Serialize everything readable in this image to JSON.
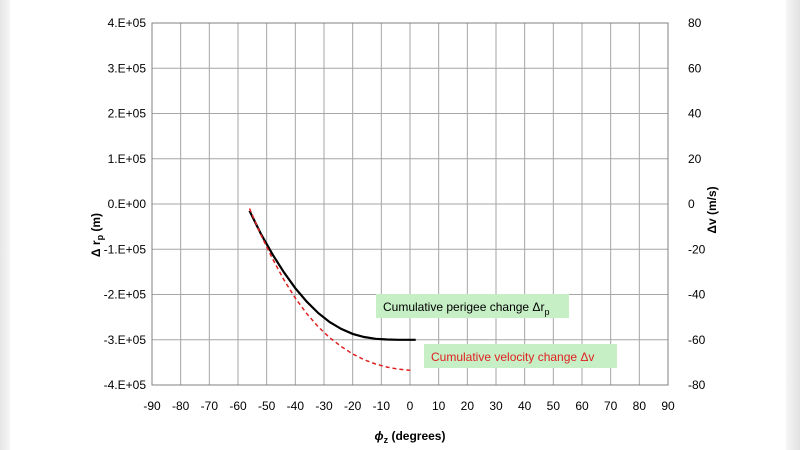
{
  "chart_data": {
    "type": "line",
    "xlabel_symbol": "ϕ",
    "xlabel_sub": "z",
    "xlabel_rest": " (degrees)",
    "ylabel_left_prefix": "Δ r",
    "ylabel_left_sub": "p",
    "ylabel_left_suffix": " (m)",
    "ylabel_right": "Δv (m/s)",
    "x_range": [
      -90,
      90
    ],
    "x_ticks": [
      -90,
      -80,
      -70,
      -60,
      -50,
      -40,
      -30,
      -20,
      -10,
      0,
      10,
      20,
      30,
      40,
      50,
      60,
      70,
      80,
      90
    ],
    "x_tick_labels": [
      "-90",
      "-80",
      "-70",
      "-60",
      "-50",
      "-40",
      "-30",
      "-20",
      "-10",
      "0",
      "10",
      "20",
      "30",
      "40",
      "50",
      "60",
      "70",
      "80",
      "90"
    ],
    "y_left_range": [
      -400000,
      400000
    ],
    "y_left_ticks": [
      400000,
      300000,
      200000,
      100000,
      0,
      -100000,
      -200000,
      -300000,
      -400000
    ],
    "y_left_tick_labels": [
      "4.E+05",
      "3.E+05",
      "2.E+05",
      "1.E+05",
      "0.E+00",
      "-1.E+05",
      "-2.E+05",
      "-3.E+05",
      "-4.E+05"
    ],
    "y_right_range": [
      -80,
      80
    ],
    "y_right_ticks": [
      80,
      60,
      40,
      20,
      0,
      -20,
      -40,
      -60,
      -80
    ],
    "y_right_tick_labels": [
      "80",
      "60",
      "40",
      "20",
      "0",
      "-20",
      "-40",
      "-60",
      "-80"
    ],
    "series": [
      {
        "name": "Cumulative perigee change Δr_p",
        "axis": "left",
        "color": "#000000",
        "style": "solid",
        "x": [
          -56,
          -52,
          -48,
          -44,
          -40,
          -36,
          -32,
          -28,
          -24,
          -20,
          -16,
          -12,
          -8,
          -4,
          0,
          2
        ],
        "y": [
          -15000,
          -66000,
          -111000,
          -151000,
          -186000,
          -216000,
          -241000,
          -261000,
          -276000,
          -287000,
          -294000,
          -298000,
          -299500,
          -300000,
          -300000,
          -300000
        ]
      },
      {
        "name": "Cumulative velocity change Δv",
        "axis": "right",
        "color": "#e02020",
        "style": "dashed",
        "x": [
          -56,
          -52,
          -48,
          -44,
          -40,
          -36,
          -32,
          -28,
          -24,
          -20,
          -16,
          -12,
          -8,
          -4,
          0,
          1
        ],
        "y": [
          -2.0,
          -13.6,
          -24.1,
          -33.5,
          -41.6,
          -48.5,
          -54.3,
          -59.1,
          -63.0,
          -66.3,
          -68.8,
          -70.7,
          -72.1,
          -73.0,
          -73.5,
          -73.6
        ]
      }
    ],
    "annotations": [
      {
        "text": "Cumulative perigee change  Δr",
        "sub": "p",
        "color": "#000000"
      },
      {
        "text": "Cumulative velocity change  Δv",
        "sub": "",
        "color": "#e02020"
      }
    ]
  }
}
